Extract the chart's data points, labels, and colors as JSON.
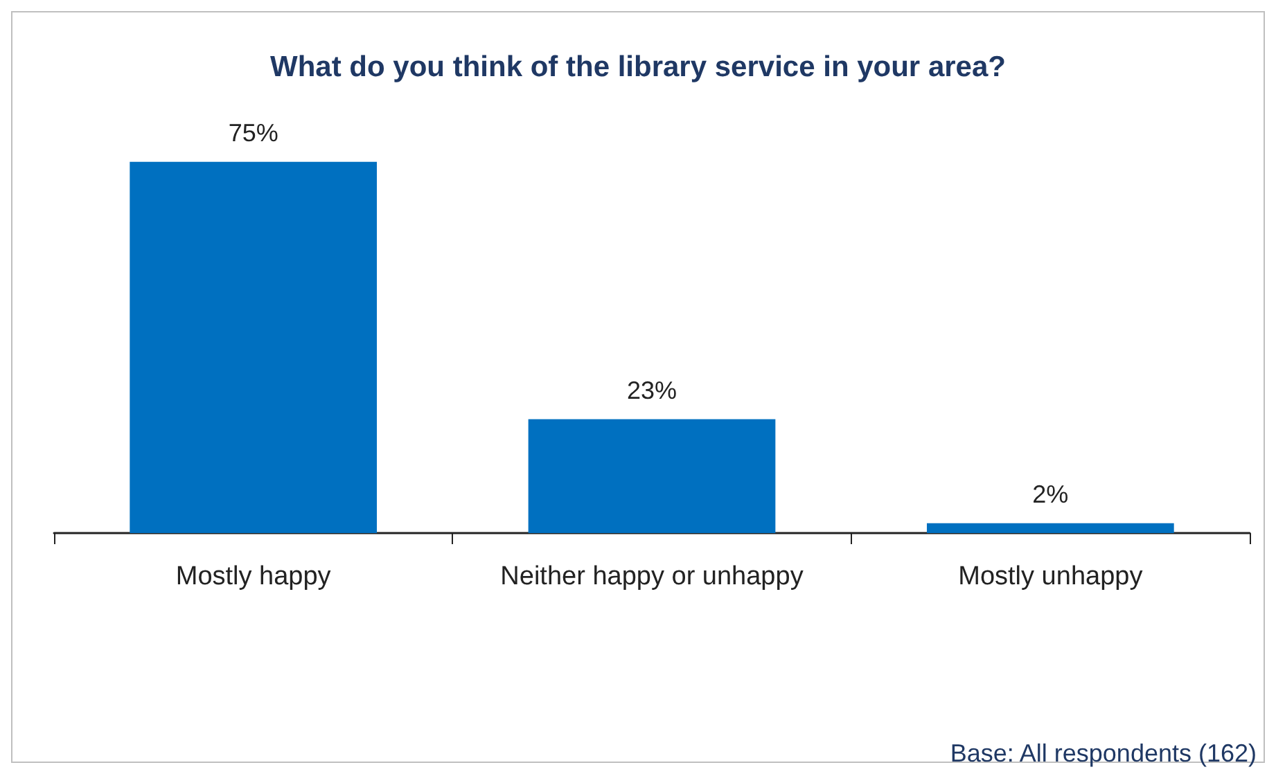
{
  "chart_data": {
    "type": "bar",
    "title": "What do you think of the library service in your area?",
    "categories": [
      "Mostly happy",
      "Neither happy or unhappy",
      "Mostly unhappy"
    ],
    "values": [
      75,
      23,
      2
    ],
    "color": "#0070c0",
    "value_labels": [
      "75%",
      "23%",
      "2%"
    ],
    "grid": false,
    "annotations": [
      "Base: All respondents (162)"
    ]
  }
}
